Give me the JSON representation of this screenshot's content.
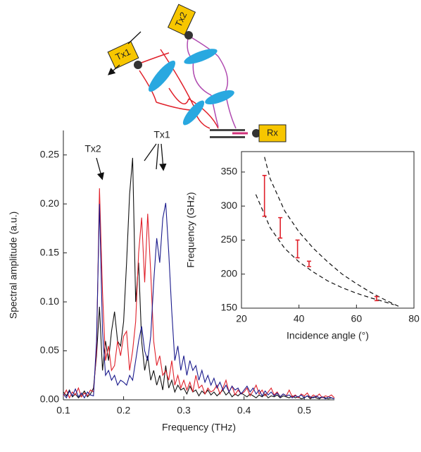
{
  "diagram": {
    "labels": [
      "Tx1",
      "Tx2",
      "Rx"
    ]
  },
  "chart_data": [
    {
      "type": "line",
      "xlabel": "Frequency (THz)",
      "ylabel": "Spectral amplitude (a.u.)",
      "annotations": [
        "Tx2",
        "Tx1"
      ],
      "xlim": [
        0.1,
        0.55
      ],
      "ylim": [
        0,
        0.275
      ],
      "xticks": [
        0.1,
        0.2,
        0.3,
        0.4,
        0.5
      ],
      "yticks": [
        {
          "value": 0,
          "label": "0.00"
        },
        {
          "value": 0.05,
          "label": "0.05"
        },
        {
          "value": 0.1,
          "label": "0.10"
        },
        {
          "value": 0.15,
          "label": "0.15"
        },
        {
          "value": 0.2,
          "label": "0.20"
        },
        {
          "value": 0.25,
          "label": "0.25"
        }
      ],
      "x": [
        0.1,
        0.105,
        0.11,
        0.115,
        0.12,
        0.125,
        0.13,
        0.135,
        0.14,
        0.145,
        0.15,
        0.155,
        0.16,
        0.165,
        0.17,
        0.175,
        0.18,
        0.185,
        0.19,
        0.195,
        0.2,
        0.205,
        0.21,
        0.215,
        0.22,
        0.225,
        0.23,
        0.235,
        0.24,
        0.245,
        0.25,
        0.255,
        0.26,
        0.265,
        0.27,
        0.275,
        0.28,
        0.285,
        0.29,
        0.295,
        0.3,
        0.305,
        0.31,
        0.315,
        0.32,
        0.325,
        0.33,
        0.335,
        0.34,
        0.345,
        0.35,
        0.355,
        0.36,
        0.365,
        0.37,
        0.375,
        0.38,
        0.385,
        0.39,
        0.395,
        0.4,
        0.405,
        0.41,
        0.415,
        0.42,
        0.425,
        0.43,
        0.435,
        0.44,
        0.445,
        0.45,
        0.455,
        0.46,
        0.465,
        0.47,
        0.475,
        0.48,
        0.485,
        0.49,
        0.495,
        0.5,
        0.505,
        0.51,
        0.515,
        0.52,
        0.525,
        0.53,
        0.535,
        0.54,
        0.545,
        0.55
      ],
      "series": [
        {
          "color": "#111111",
          "values": [
            0.008,
            0.004,
            0.01,
            0.003,
            0.006,
            0.002,
            0.005,
            0.009,
            0.003,
            0.006,
            0.012,
            0.045,
            0.095,
            0.03,
            0.06,
            0.04,
            0.07,
            0.09,
            0.06,
            0.055,
            0.08,
            0.14,
            0.21,
            0.247,
            0.1,
            0.14,
            0.06,
            0.03,
            0.045,
            0.02,
            0.03,
            0.015,
            0.025,
            0.01,
            0.035,
            0.012,
            0.02,
            0.008,
            0.015,
            0.01,
            0.012,
            0.006,
            0.014,
            0.008,
            0.01,
            0.004,
            0.009,
            0.006,
            0.01,
            0.005,
            0.008,
            0.004,
            0.007,
            0.01,
            0.005,
            0.008,
            0.003,
            0.006,
            0.004,
            0.007,
            0.005,
            0.003,
            0.006,
            0.004,
            0.002,
            0.005,
            0.003,
            0.006,
            0.002,
            0.004,
            0.003,
            0.005,
            0.002,
            0.004,
            0.003,
            0.002,
            0.004,
            0.002,
            0.003,
            0.001,
            0.002,
            0.004,
            0.001,
            0.003,
            0.002,
            0.001,
            0.003,
            0.002,
            0.001,
            0.002,
            0.001
          ]
        },
        {
          "color": "#e0202a",
          "values": [
            0.004,
            0.01,
            0.002,
            0.008,
            0.005,
            0.012,
            0.003,
            0.007,
            0.004,
            0.01,
            0.008,
            0.05,
            0.216,
            0.11,
            0.04,
            0.055,
            0.03,
            0.035,
            0.06,
            0.045,
            0.065,
            0.07,
            0.03,
            0.05,
            0.08,
            0.15,
            0.186,
            0.12,
            0.19,
            0.13,
            0.06,
            0.035,
            0.045,
            0.025,
            0.03,
            0.02,
            0.04,
            0.015,
            0.025,
            0.012,
            0.02,
            0.01,
            0.018,
            0.008,
            0.025,
            0.012,
            0.015,
            0.006,
            0.012,
            0.008,
            0.01,
            0.015,
            0.006,
            0.012,
            0.02,
            0.008,
            0.014,
            0.005,
            0.01,
            0.006,
            0.008,
            0.012,
            0.004,
            0.009,
            0.015,
            0.006,
            0.01,
            0.004,
            0.008,
            0.012,
            0.005,
            0.008,
            0.003,
            0.006,
            0.004,
            0.01,
            0.003,
            0.005,
            0.002,
            0.006,
            0.004,
            0.007,
            0.002,
            0.005,
            0.003,
            0.006,
            0.002,
            0.004,
            0.003,
            0.005,
            0.002
          ]
        },
        {
          "color": "#1a1a8c",
          "values": [
            0.006,
            0.002,
            0.009,
            0.004,
            0.011,
            0.003,
            0.007,
            0.002,
            0.008,
            0.005,
            0.004,
            0.06,
            0.2,
            0.07,
            0.025,
            0.03,
            0.02,
            0.025,
            0.015,
            0.02,
            0.018,
            0.015,
            0.025,
            0.02,
            0.04,
            0.06,
            0.075,
            0.05,
            0.04,
            0.065,
            0.12,
            0.165,
            0.14,
            0.185,
            0.201,
            0.15,
            0.09,
            0.04,
            0.055,
            0.03,
            0.045,
            0.025,
            0.04,
            0.03,
            0.035,
            0.02,
            0.03,
            0.018,
            0.025,
            0.015,
            0.022,
            0.012,
            0.018,
            0.01,
            0.015,
            0.008,
            0.014,
            0.01,
            0.012,
            0.006,
            0.01,
            0.014,
            0.008,
            0.012,
            0.006,
            0.01,
            0.004,
            0.009,
            0.005,
            0.008,
            0.004,
            0.007,
            0.003,
            0.006,
            0.004,
            0.005,
            0.002,
            0.004,
            0.003,
            0.005,
            0.002,
            0.004,
            0.003,
            0.002,
            0.004,
            0.002,
            0.003,
            0.001,
            0.003,
            0.002,
            0.001
          ]
        }
      ]
    },
    {
      "type": "scatter",
      "xlabel": "Incidence angle (°)",
      "ylabel": "Frequency (GHz)",
      "xlim": [
        20,
        80
      ],
      "ylim": [
        150,
        380
      ],
      "xticks": [
        20,
        40,
        60,
        80
      ],
      "yticks": [
        150,
        200,
        250,
        300,
        350
      ],
      "x": [
        28,
        33.5,
        39.5,
        43.5,
        67
      ],
      "series": [
        {
          "color": "#e0202a",
          "values": [
            315,
            268,
            237,
            215,
            164
          ],
          "errors": [
            30,
            15,
            13,
            4,
            3
          ]
        }
      ],
      "lines": [
        {
          "color": "#111111",
          "dash": true,
          "x": [
            28,
            30,
            35,
            40,
            45,
            50,
            55,
            60,
            65,
            70,
            75
          ],
          "values": [
            372,
            340,
            293,
            262,
            238,
            218,
            200,
            186,
            173,
            162,
            152
          ]
        },
        {
          "color": "#111111",
          "dash": true,
          "x": [
            25,
            30,
            35,
            40,
            45,
            50,
            55,
            60,
            65,
            70,
            73
          ],
          "values": [
            317,
            268,
            238,
            218,
            203,
            190,
            180,
            172,
            165,
            159,
            155
          ]
        }
      ]
    }
  ]
}
